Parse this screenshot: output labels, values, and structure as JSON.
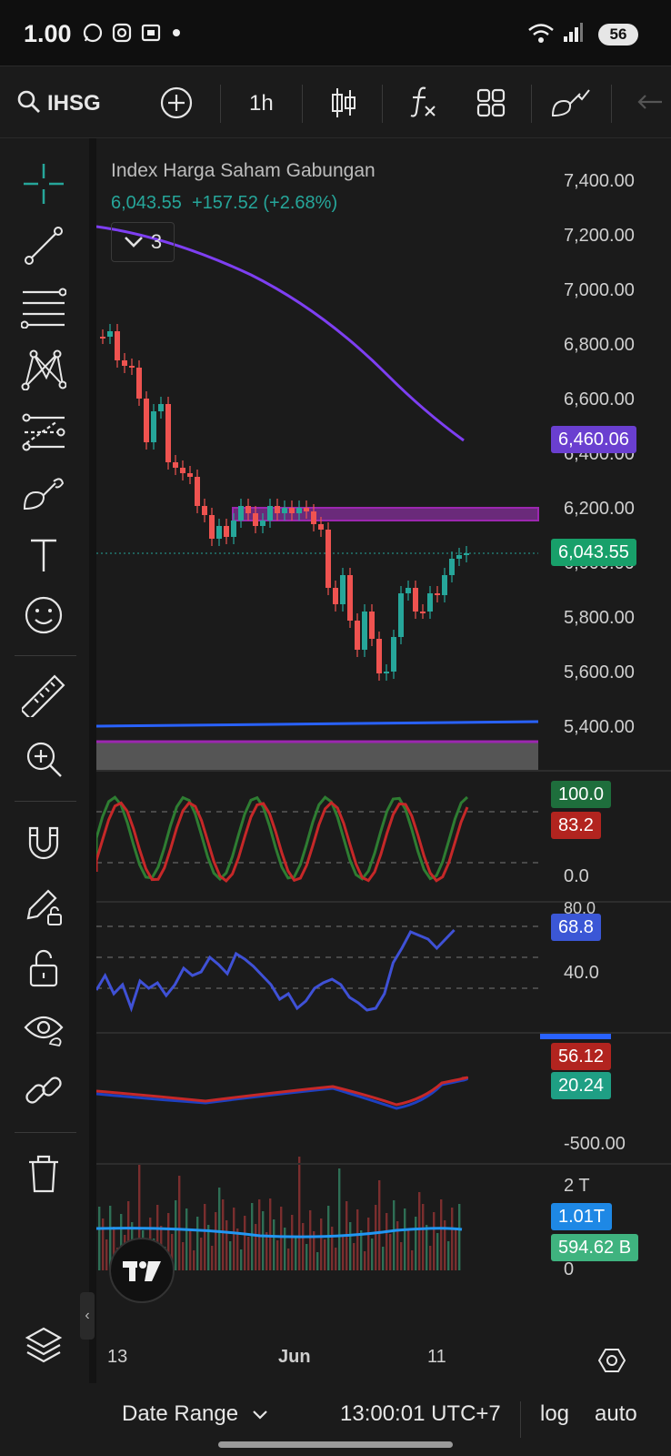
{
  "status_bar": {
    "time": "1.00",
    "battery": "56"
  },
  "toolbar": {
    "symbol": "IHSG",
    "interval": "1h"
  },
  "chart": {
    "title": "Index Harga Saham Gabungan",
    "last_price": "6,043.55",
    "change": "+157.52 (+2.68%)",
    "indicators_collapsed_count": "3",
    "price_axis": [
      "7,400.00",
      "7,200.00",
      "7,000.00",
      "6,800.00",
      "6,600.00",
      "6,400.00",
      "6,200.00",
      "6,000.00",
      "5,800.00",
      "5,600.00",
      "5,400.00"
    ],
    "tags": {
      "curve_value": "6,460.06",
      "last_price_tag": "6,043.55"
    },
    "colors": {
      "up": "#26a69a",
      "down": "#ef5350",
      "purple": "#7e3ff2",
      "blue": "#2962ff",
      "zone": "#9c27b0"
    }
  },
  "stoch": {
    "axis": [
      "100.0",
      "0.0"
    ],
    "k": "100.0",
    "d": "83.2"
  },
  "rsi": {
    "axis": [
      "80.0",
      "40.0"
    ],
    "value": "68.8"
  },
  "macd": {
    "axis": [
      "-500.00"
    ],
    "macd": "56.12",
    "signal": "20.24"
  },
  "volume": {
    "axis": [
      "2 T",
      "0"
    ],
    "ma": "1.01T",
    "vol": "594.62 B"
  },
  "x_axis": {
    "labels": [
      "13",
      "Jun",
      "11"
    ]
  },
  "bottom_bar": {
    "date_range": "Date Range",
    "time": "13:00:01 UTC+7",
    "log": "log",
    "auto": "auto"
  }
}
